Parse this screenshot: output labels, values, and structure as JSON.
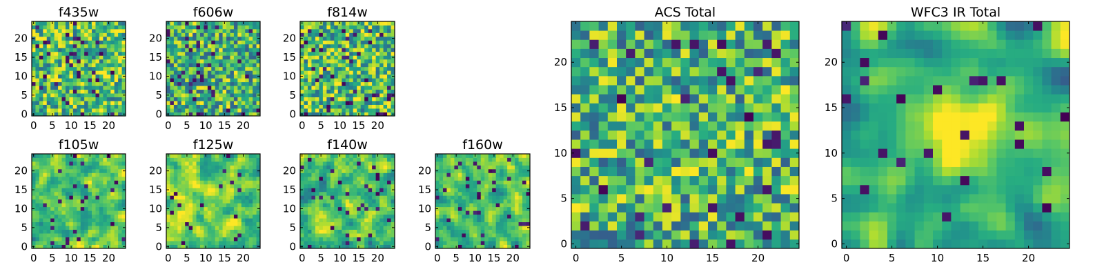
{
  "figure": {
    "title": ""
  },
  "chart_data": [
    {
      "type": "heatmap",
      "title": "f435w",
      "size": 25,
      "xticks": [
        0,
        5,
        10,
        15,
        20
      ],
      "yticks": [
        0,
        5,
        10,
        15,
        20
      ],
      "xlim": [
        -0.5,
        24.5
      ],
      "ylim": [
        -0.5,
        24.5
      ],
      "colormap": "viridis",
      "seed": 11,
      "smooth": 0,
      "darkFrac": 0.06,
      "bias": 0.05
    },
    {
      "type": "heatmap",
      "title": "f606w",
      "size": 25,
      "xticks": [
        0,
        5,
        10,
        15,
        20
      ],
      "yticks": [
        0,
        5,
        10,
        15,
        20
      ],
      "xlim": [
        -0.5,
        24.5
      ],
      "ylim": [
        -0.5,
        24.5
      ],
      "colormap": "viridis",
      "seed": 23,
      "smooth": 0,
      "darkFrac": 0.06,
      "bias": 0.0
    },
    {
      "type": "heatmap",
      "title": "f814w",
      "size": 25,
      "xticks": [
        0,
        5,
        10,
        15,
        20
      ],
      "yticks": [
        0,
        5,
        10,
        15,
        20
      ],
      "xlim": [
        -0.5,
        24.5
      ],
      "ylim": [
        -0.5,
        24.5
      ],
      "colormap": "viridis",
      "seed": 37,
      "smooth": 0,
      "darkFrac": 0.05,
      "bias": 0.05
    },
    {
      "type": "heatmap",
      "title": "f105w",
      "size": 25,
      "xticks": [
        0,
        5,
        10,
        15,
        20
      ],
      "yticks": [
        0,
        5,
        10,
        15,
        20
      ],
      "xlim": [
        -0.5,
        24.5
      ],
      "ylim": [
        -0.5,
        24.5
      ],
      "colormap": "viridis",
      "seed": 41,
      "smooth": 1,
      "darkFrac": 0.04,
      "bias": 0.1
    },
    {
      "type": "heatmap",
      "title": "f125w",
      "size": 25,
      "xticks": [
        0,
        5,
        10,
        15,
        20
      ],
      "yticks": [
        0,
        5,
        10,
        15,
        20
      ],
      "xlim": [
        -0.5,
        24.5
      ],
      "ylim": [
        -0.5,
        24.5
      ],
      "colormap": "viridis",
      "seed": 53,
      "smooth": 1,
      "darkFrac": 0.03,
      "bias": 0.12
    },
    {
      "type": "heatmap",
      "title": "f140w",
      "size": 25,
      "xticks": [
        0,
        5,
        10,
        15,
        20
      ],
      "yticks": [
        0,
        5,
        10,
        15,
        20
      ],
      "xlim": [
        -0.5,
        24.5
      ],
      "ylim": [
        -0.5,
        24.5
      ],
      "colormap": "viridis",
      "seed": 67,
      "smooth": 1,
      "darkFrac": 0.05,
      "bias": 0.05
    },
    {
      "type": "heatmap",
      "title": "f160w",
      "size": 25,
      "xticks": [
        0,
        5,
        10,
        15,
        20
      ],
      "yticks": [
        0,
        5,
        10,
        15,
        20
      ],
      "xlim": [
        -0.5,
        24.5
      ],
      "ylim": [
        -0.5,
        24.5
      ],
      "colormap": "viridis",
      "seed": 79,
      "smooth": 1,
      "darkFrac": 0.05,
      "bias": 0.05
    },
    {
      "type": "heatmap",
      "title": "ACS Total",
      "size": 25,
      "xticks": [
        0,
        5,
        10,
        15,
        20
      ],
      "yticks": [
        0,
        5,
        10,
        15,
        20
      ],
      "xlim": [
        -0.5,
        24.5
      ],
      "ylim": [
        -0.5,
        24.5
      ],
      "colormap": "viridis",
      "seed": 97,
      "smooth": 0,
      "darkFrac": 0.035,
      "bias": 0.0
    },
    {
      "type": "heatmap",
      "title": "WFC3 IR Total",
      "size": 25,
      "xticks": [
        0,
        5,
        10,
        15,
        20
      ],
      "yticks": [
        0,
        5,
        10,
        15,
        20
      ],
      "xlim": [
        -0.5,
        24.5
      ],
      "ylim": [
        -0.5,
        24.5
      ],
      "colormap": "viridis",
      "seed": 113,
      "smooth": 2,
      "darkFrac": 0.03,
      "bias": 0.0,
      "blob": [
        12.5,
        12.5,
        3.5
      ]
    }
  ],
  "colors": {
    "frame": "#000000",
    "background": "#ffffff"
  }
}
